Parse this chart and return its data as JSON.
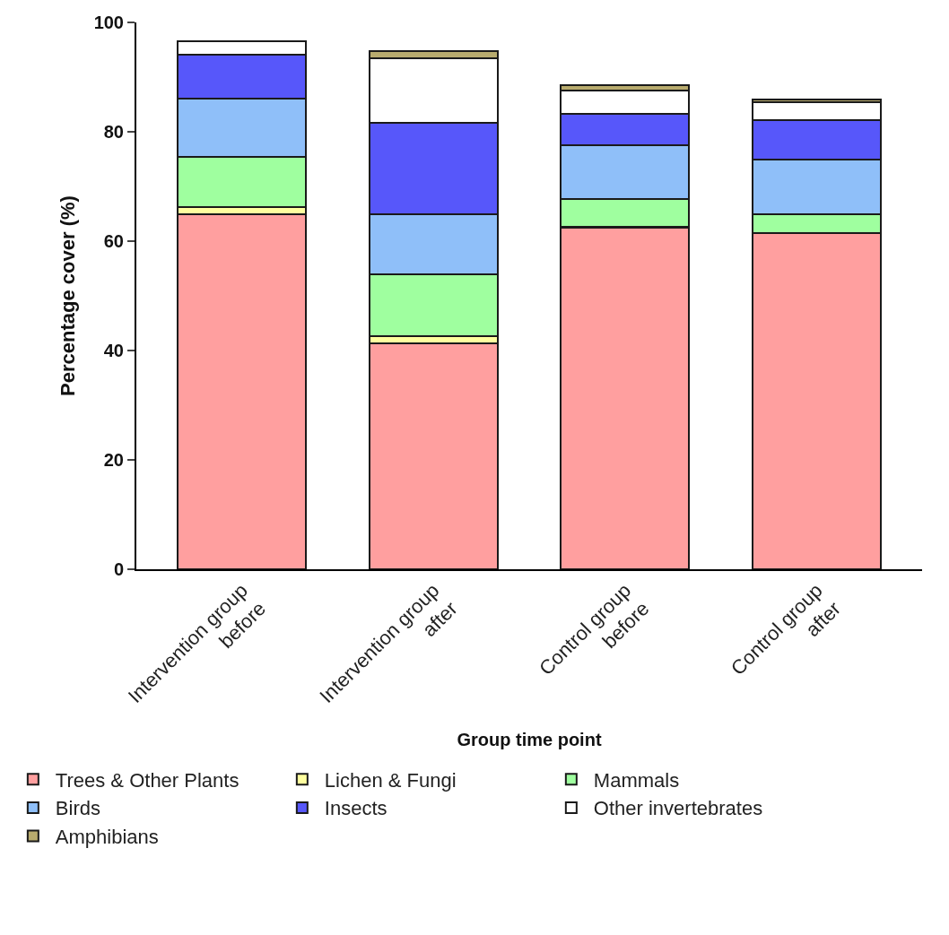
{
  "chart_data": {
    "type": "bar",
    "stacked": true,
    "xlabel": "Group time point",
    "ylabel": "Percentage cover (%)",
    "categories": [
      "Intervention group\nbefore",
      "Intervention group\nafter",
      "Control group\nbefore",
      "Control group\nafter"
    ],
    "series": [
      {
        "name": "Trees & Other Plants",
        "color": "#ff9f9f",
        "values": [
          64.9,
          41.3,
          62.4,
          61.4
        ]
      },
      {
        "name": "Lichen & Fungi",
        "color": "#ffff9f",
        "values": [
          1.3,
          1.3,
          0.2,
          null
        ]
      },
      {
        "name": "Mammals",
        "color": "#9fff9f",
        "values": [
          9.2,
          11.3,
          5.1,
          3.6
        ]
      },
      {
        "name": "Birds",
        "color": "#8fbff9",
        "values": [
          10.7,
          11.1,
          9.8,
          9.9
        ]
      },
      {
        "name": "Insects",
        "color": "#5757fa",
        "values": [
          8.0,
          16.6,
          5.8,
          7.2
        ]
      },
      {
        "name": "Other invertebrates",
        "color": "#ffffff",
        "values": [
          2.5,
          11.8,
          4.3,
          3.3
        ]
      },
      {
        "name": "Amphibians",
        "color": "#b8ab6e",
        "values": [
          null,
          1.3,
          1.0,
          0.5
        ]
      }
    ],
    "ylim": [
      0,
      100
    ],
    "yticks": [
      0,
      20,
      40,
      60,
      80,
      100
    ],
    "legend": "bottom"
  }
}
